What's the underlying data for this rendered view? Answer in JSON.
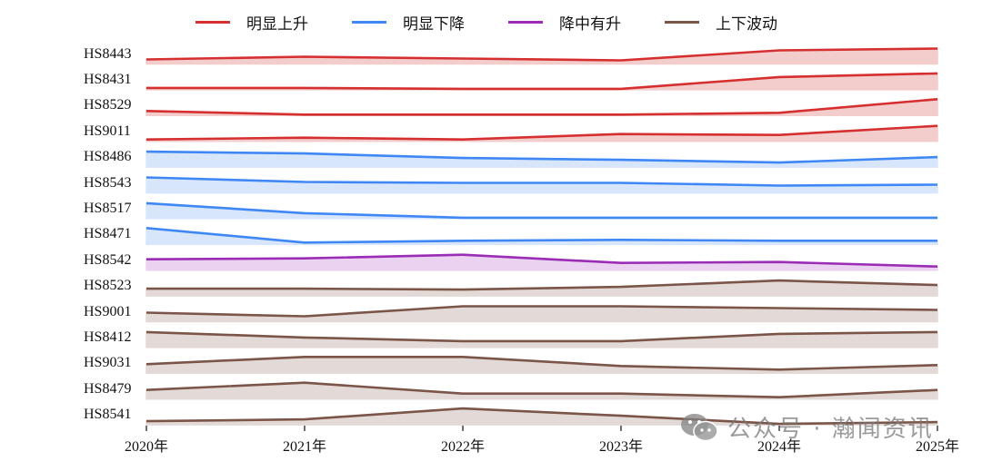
{
  "legend": [
    {
      "label": "明显上升",
      "color": "#d62f2f",
      "fill": "#f3cccc"
    },
    {
      "label": "明显下降",
      "color": "#3f87f5",
      "fill": "#d7e6fb"
    },
    {
      "label": "降中有升",
      "color": "#9b2cb5",
      "fill": "#ebd2f1"
    },
    {
      "label": "上下波动",
      "color": "#7a5548",
      "fill": "#e3d9d6"
    }
  ],
  "watermark": "公众号 · 瀚闻资讯",
  "chart_data": {
    "type": "area",
    "title": "",
    "xlabel": "",
    "ylabel": "",
    "x": [
      "2020年",
      "2021年",
      "2022年",
      "2023年",
      "2024年",
      "2025年"
    ],
    "grid": false,
    "legend_position": "top",
    "note": "Ridgeline-style small multiples; values are relative line heights in pixels above each row baseline (approximate, no y-axis scale shown).",
    "series": [
      {
        "name": "HS8443",
        "category": "明显上升",
        "values": [
          5,
          8,
          6,
          4,
          15,
          17
        ]
      },
      {
        "name": "HS8431",
        "category": "明显上升",
        "values": [
          2,
          2,
          1,
          1,
          14,
          18
        ]
      },
      {
        "name": "HS8529",
        "category": "明显上升",
        "values": [
          5,
          1,
          1,
          1,
          3,
          18
        ]
      },
      {
        "name": "HS9011",
        "category": "明显上升",
        "values": [
          2,
          4,
          2,
          8,
          7,
          17
        ]
      },
      {
        "name": "HS8486",
        "category": "明显下降",
        "values": [
          17,
          15,
          10,
          8,
          5,
          11
        ]
      },
      {
        "name": "HS8543",
        "category": "明显下降",
        "values": [
          17,
          12,
          11,
          11,
          8,
          9
        ]
      },
      {
        "name": "HS8517",
        "category": "明显下降",
        "values": [
          17,
          6,
          1,
          1,
          1,
          1
        ]
      },
      {
        "name": "HS8471",
        "category": "明显下降",
        "values": [
          18,
          2,
          4,
          5,
          4,
          4
        ]
      },
      {
        "name": "HS8542",
        "category": "降中有升",
        "values": [
          12,
          13,
          17,
          8,
          9,
          4
        ]
      },
      {
        "name": "HS8523",
        "category": "上下波动",
        "values": [
          8,
          8,
          7,
          10,
          17,
          12
        ]
      },
      {
        "name": "HS9001",
        "category": "上下波动",
        "values": [
          10,
          6,
          17,
          17,
          15,
          13
        ]
      },
      {
        "name": "HS8412",
        "category": "上下波动",
        "values": [
          17,
          11,
          7,
          7,
          15,
          17
        ]
      },
      {
        "name": "HS9031",
        "category": "上下波动",
        "values": [
          10,
          18,
          18,
          8,
          4,
          9
        ]
      },
      {
        "name": "HS8479",
        "category": "上下波动",
        "values": [
          10,
          18,
          6,
          6,
          2,
          10
        ]
      },
      {
        "name": "HS8541",
        "category": "上下波动",
        "values": [
          4,
          6,
          18,
          10,
          1,
          3
        ]
      }
    ]
  }
}
